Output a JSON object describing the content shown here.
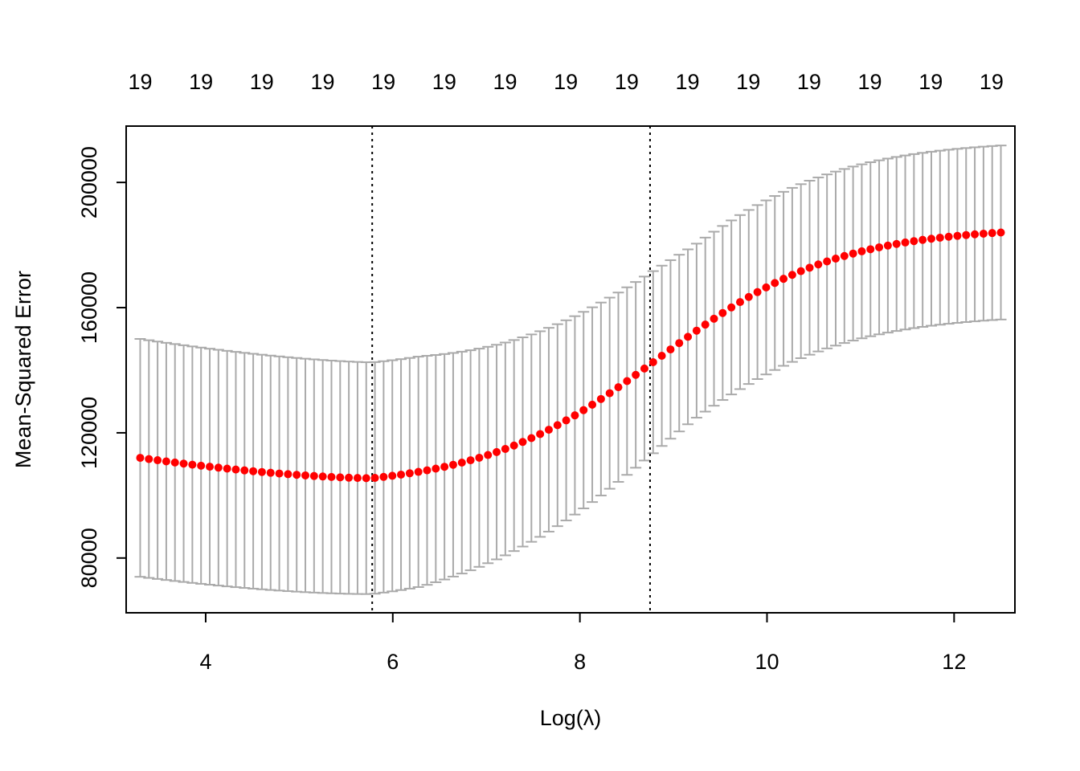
{
  "chart_data": {
    "type": "scatter",
    "title": "",
    "xlabel": "Log(λ)",
    "ylabel": "Mean-Squared Error",
    "xlim": [
      3.15,
      12.65
    ],
    "ylim": [
      62500,
      218000
    ],
    "x_ticks": [
      4,
      6,
      8,
      10,
      12
    ],
    "y_ticks": [
      80000,
      120000,
      160000,
      200000
    ],
    "top_axis_labels": [
      "19",
      "19",
      "19",
      "19",
      "19",
      "19",
      "19",
      "19",
      "19",
      "19",
      "19",
      "19",
      "19",
      "19",
      "19"
    ],
    "top_axis_label_x": [
      3.3,
      3.95,
      4.6,
      5.25,
      5.9,
      6.55,
      7.2,
      7.85,
      8.5,
      9.15,
      9.8,
      10.45,
      11.1,
      11.75,
      12.4
    ],
    "vlines": [
      5.78,
      8.75
    ],
    "n_points": 100,
    "x_range": [
      3.3,
      12.5
    ],
    "mse_min": 105500,
    "mse_at_min_x": 5.78,
    "mse_start": 112000,
    "mse_end": 184000,
    "point_color": "#ff0000",
    "errorbar_color": "#aaaaaa",
    "vline_color": "#000000",
    "grid": false,
    "legend": "none"
  }
}
